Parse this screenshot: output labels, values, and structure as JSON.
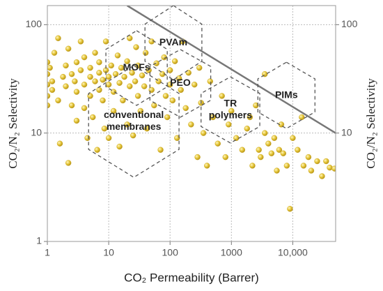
{
  "chart_data": {
    "type": "scatter",
    "x_label": "CO₂ Permeability (Barrer)",
    "y_label": "CO₂/N₂ Selectivity",
    "y2_label": "CO₂/N₂ Selectivity",
    "log_x": true,
    "log_y": true,
    "grid": true,
    "color": "#e6c73a",
    "xlim": [
      1,
      50000
    ],
    "ylim": [
      1,
      150
    ],
    "y2lim": [
      1,
      150
    ],
    "xticks": [
      1,
      10,
      100,
      1000,
      {
        "value": 10000,
        "label": "10,000"
      }
    ],
    "yticks": [
      1,
      10,
      100
    ],
    "y2ticks": [
      10,
      100
    ],
    "x": [
      1,
      1,
      1,
      1,
      1,
      1.1,
      1.2,
      1.2,
      1.3,
      1.5,
      1.5,
      1.6,
      1.8,
      2,
      2,
      2.2,
      2.2,
      2.5,
      2.5,
      2.8,
      3,
      3,
      3,
      3.5,
      3.5,
      4,
      4,
      4,
      4.5,
      5,
      5,
      5,
      5.5,
      6,
      6,
      6.5,
      7,
      7,
      7,
      8,
      8,
      8.5,
      9,
      9,
      10,
      10,
      10,
      11,
      12,
      12,
      13,
      14,
      15,
      15,
      16,
      17,
      18,
      20,
      20,
      22,
      22,
      24,
      25,
      27,
      28,
      30,
      30,
      33,
      35,
      38,
      40,
      42,
      45,
      50,
      50,
      55,
      60,
      65,
      70,
      75,
      80,
      85,
      90,
      100,
      100,
      110,
      120,
      130,
      140,
      150,
      160,
      180,
      200,
      220,
      250,
      280,
      300,
      320,
      350,
      400,
      450,
      500,
      600,
      700,
      800,
      900,
      1000,
      1200,
      1500,
      1800,
      2000,
      2200,
      2500,
      2800,
      3000,
      3500,
      3500,
      4000,
      4500,
      5000,
      5500,
      6000,
      6500,
      7000,
      8000,
      9000,
      10000,
      12000,
      14000,
      15000,
      18000,
      20000,
      25000,
      30000,
      35000,
      40000,
      48000
    ],
    "values": [
      45,
      35,
      28,
      22,
      18,
      40,
      30,
      25,
      55,
      75,
      20,
      8,
      33,
      42,
      27,
      5.3,
      60,
      35,
      18,
      30,
      45,
      24,
      13,
      38,
      70,
      28,
      17,
      50,
      9,
      33,
      40,
      22,
      14,
      30,
      55,
      7,
      36,
      25,
      45,
      31,
      20,
      11,
      38,
      70,
      28,
      33,
      9,
      42,
      24,
      16,
      35,
      52,
      29,
      7.5,
      40,
      20,
      33,
      46,
      12,
      27,
      75,
      36,
      9.5,
      30,
      62,
      22,
      42,
      16,
      34,
      27,
      55,
      11,
      38,
      25,
      70,
      18,
      44,
      30,
      7,
      35,
      50,
      22,
      14,
      38,
      28,
      20,
      46,
      9,
      32,
      25,
      70,
      17,
      36,
      12,
      28,
      6,
      40,
      19,
      10,
      5,
      30,
      14,
      8,
      22,
      6,
      12,
      16,
      9,
      7,
      11,
      14,
      5,
      18,
      7,
      6,
      35,
      10,
      8,
      6.5,
      9,
      4.5,
      7,
      12,
      6.5,
      5,
      2,
      9,
      7,
      14,
      5,
      6,
      4.5,
      5.5,
      4,
      5.5,
      4.8,
      4.7
    ],
    "upper_bound": {
      "x": [
        20,
        50000
      ],
      "values": [
        150,
        10
      ],
      "color": "#777777"
    },
    "regions": [
      {
        "label": [
          "PVAm"
        ],
        "x": [
          39,
          330
        ],
        "y": [
          31,
          150
        ]
      },
      {
        "label": [
          "MOFs"
        ],
        "x": [
          9,
          90
        ],
        "y": [
          18,
          88
        ]
      },
      {
        "label": [
          "PEO"
        ],
        "x": [
          47,
          460
        ],
        "y": [
          14,
          59
        ]
      },
      {
        "label": [
          "conventional",
          "membranes"
        ],
        "x": [
          4.7,
          140
        ],
        "y": [
          3.9,
          42
        ]
      },
      {
        "label": [
          "TR",
          "polymers"
        ],
        "x": [
          320,
          2900
        ],
        "y": [
          8.1,
          33
        ]
      },
      {
        "label": [
          "PIMs"
        ],
        "x": [
          2700,
          23000
        ],
        "y": [
          11,
          45
        ]
      }
    ]
  }
}
